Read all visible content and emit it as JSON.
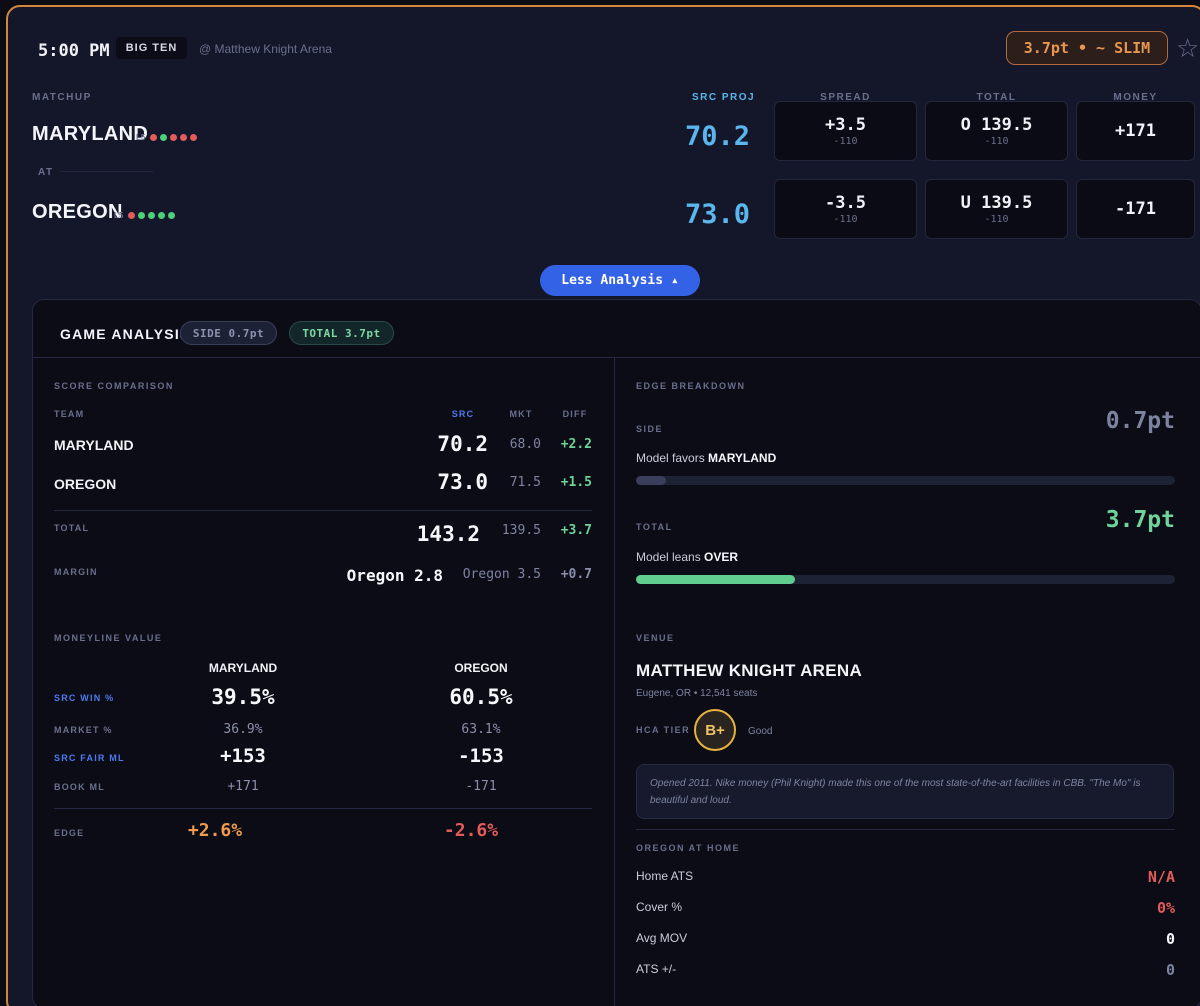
{
  "header": {
    "time": "5:00 PM",
    "conference": "BIG TEN",
    "venue": "@ Matthew Knight Arena",
    "edge_pill": "3.7pt • ~ SLIM",
    "star_icon": "☆"
  },
  "matchup": {
    "label": "MATCHUP",
    "at_label": "AT",
    "col_src": "SRC PROJ",
    "col_spread": "SPREAD",
    "col_total": "TOTAL",
    "col_money": "MONEY",
    "l5_label": "L5",
    "away": {
      "name": "MARYLAND",
      "form": [
        "loss",
        "win",
        "loss",
        "loss",
        "loss"
      ],
      "proj": "70.2",
      "spread": "+3.5",
      "spread_odds": "-110",
      "total": "O 139.5",
      "total_odds": "-110",
      "money": "+171"
    },
    "home": {
      "name": "OREGON",
      "form": [
        "loss",
        "win",
        "win",
        "win",
        "win"
      ],
      "proj": "73.0",
      "spread": "-3.5",
      "spread_odds": "-110",
      "total": "U 139.5",
      "total_odds": "-110",
      "money": "-171"
    }
  },
  "toggle": {
    "label": "Less Analysis ▴"
  },
  "analysis": {
    "title": "GAME ANALYSIS",
    "side_chip": "SIDE 0.7pt",
    "total_chip": "TOTAL 3.7pt",
    "score_comparison": {
      "label": "SCORE COMPARISON",
      "col_team": "TEAM",
      "col_src": "SRC",
      "col_mkt": "MKT",
      "col_diff": "DIFF",
      "rows": [
        {
          "team": "MARYLAND",
          "src": "70.2",
          "mkt": "68.0",
          "diff": "+2.2"
        },
        {
          "team": "OREGON",
          "src": "73.0",
          "mkt": "71.5",
          "diff": "+1.5"
        }
      ],
      "total": {
        "label": "TOTAL",
        "src": "143.2",
        "mkt": "139.5",
        "diff": "+3.7"
      },
      "margin": {
        "label": "MARGIN",
        "src": "Oregon 2.8",
        "mkt": "Oregon 3.5",
        "diff": "+0.7"
      }
    },
    "moneyline": {
      "label": "MONEYLINE VALUE",
      "away_team": "MARYLAND",
      "home_team": "OREGON",
      "src_win_label": "SRC WIN %",
      "away_src_win": "39.5%",
      "home_src_win": "60.5%",
      "market_label": "MARKET %",
      "away_market": "36.9%",
      "home_market": "63.1%",
      "fair_label": "SRC FAIR ML",
      "away_fair": "+153",
      "home_fair": "-153",
      "book_label": "BOOK ML",
      "away_book": "+171",
      "home_book": "-171",
      "edge_label": "EDGE",
      "away_edge": "+2.6%",
      "home_edge": "-2.6%"
    },
    "edge_breakdown": {
      "label": "EDGE BREAKDOWN",
      "side_label": "SIDE",
      "side_value": "0.7pt",
      "side_text": "Model favors ",
      "side_team": "MARYLAND",
      "side_fill": 0.056,
      "total_label": "TOTAL",
      "total_value": "3.7pt",
      "total_text": "Model leans ",
      "total_dir": "OVER",
      "total_fill": 0.295
    },
    "venue": {
      "label": "VENUE",
      "name": "MATTHEW KNIGHT ARENA",
      "sub": "Eugene, OR • 12,541 seats",
      "hca_label": "HCA TIER",
      "grade": "B+",
      "grade_text": "Good",
      "note": "Opened 2011. Nike money (Phil Knight) made this one of the most state-of-the-art facilities in CBB. \"The Mo\" is beautiful and loud."
    },
    "home_stats": {
      "label": "OREGON AT HOME",
      "rows": [
        {
          "label": "Home ATS",
          "value": "N/A"
        },
        {
          "label": "Cover %",
          "value": "0%"
        },
        {
          "label": "Avg MOV",
          "value": "0"
        },
        {
          "label": "ATS +/-",
          "value": "0"
        }
      ]
    }
  },
  "colors": {
    "accent_orange": "#d4873c",
    "proj_blue": "#5ab6ec",
    "positive_green": "#6fd39a",
    "negative_red": "#e45b5b",
    "button_blue": "#3462e6"
  }
}
